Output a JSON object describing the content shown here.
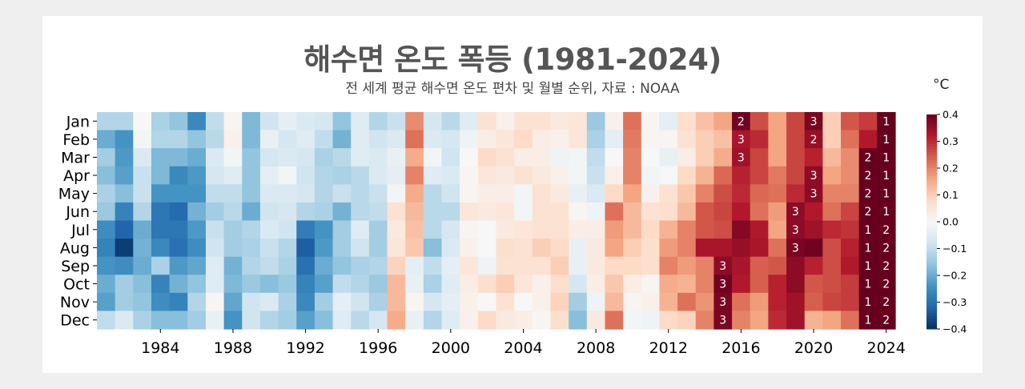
{
  "chart_data": {
    "type": "heatmap",
    "title": "해수면 온도 폭등 (1981-2024)",
    "subtitle": "전 세계 평균 해수면 온도 편차 및 월별 순위, 자료 : NOAA",
    "colorbar_label": "°C",
    "colormap": "RdBu_r",
    "color_range": [
      -0.4,
      0.4
    ],
    "colorbar_ticks": [
      "0.4",
      "0.3",
      "0.2",
      "0.1",
      "0.0",
      "−0.1",
      "−0.2",
      "−0.3",
      "−0.4"
    ],
    "months": [
      "Jan",
      "Feb",
      "Mar",
      "Apr",
      "May",
      "Jun",
      "Jul",
      "Aug",
      "Sep",
      "Oct",
      "Nov",
      "Dec"
    ],
    "x_tick_labels": [
      "1984",
      "1988",
      "1992",
      "1996",
      "2000",
      "2004",
      "2008",
      "2012",
      "2016",
      "2020",
      "2024"
    ],
    "years": [
      1981,
      1982,
      1983,
      1984,
      1985,
      1986,
      1987,
      1988,
      1989,
      1990,
      1991,
      1992,
      1993,
      1994,
      1995,
      1996,
      1997,
      1998,
      1999,
      2000,
      2001,
      2002,
      2003,
      2004,
      2005,
      2006,
      2007,
      2008,
      2009,
      2010,
      2011,
      2012,
      2013,
      2014,
      2015,
      2016,
      2017,
      2018,
      2019,
      2020,
      2021,
      2022,
      2023,
      2024
    ],
    "values": [
      [
        -0.12,
        -0.2,
        -0.14,
        -0.17,
        -0.13,
        -0.15,
        -0.25,
        -0.27,
        -0.24,
        -0.2,
        -0.22,
        -0.1
      ],
      [
        -0.12,
        -0.24,
        -0.23,
        -0.22,
        -0.17,
        -0.27,
        -0.32,
        -0.38,
        -0.25,
        -0.14,
        -0.14,
        -0.06
      ],
      [
        0.0,
        -0.01,
        -0.06,
        -0.09,
        -0.09,
        -0.12,
        -0.2,
        -0.19,
        -0.2,
        -0.17,
        -0.16,
        -0.13
      ],
      [
        -0.13,
        -0.12,
        -0.18,
        -0.18,
        -0.24,
        -0.29,
        -0.29,
        -0.26,
        -0.13,
        -0.27,
        -0.25,
        -0.17
      ],
      [
        -0.16,
        -0.12,
        -0.18,
        -0.26,
        -0.24,
        -0.31,
        -0.29,
        -0.3,
        -0.23,
        -0.19,
        -0.27,
        -0.17
      ],
      [
        -0.26,
        -0.16,
        -0.2,
        -0.23,
        -0.24,
        -0.19,
        -0.23,
        -0.25,
        -0.21,
        -0.16,
        -0.12,
        -0.14
      ],
      [
        -0.1,
        -0.11,
        -0.06,
        -0.07,
        -0.1,
        -0.14,
        -0.09,
        -0.08,
        -0.05,
        -0.05,
        0.01,
        -0.03
      ],
      [
        0.01,
        0.02,
        -0.01,
        -0.05,
        -0.1,
        -0.11,
        -0.14,
        -0.14,
        -0.19,
        -0.18,
        -0.21,
        -0.24
      ],
      [
        -0.18,
        -0.18,
        -0.16,
        -0.16,
        -0.16,
        -0.2,
        -0.12,
        -0.13,
        -0.12,
        -0.15,
        -0.08,
        -0.08
      ],
      [
        -0.08,
        -0.03,
        -0.07,
        -0.04,
        -0.06,
        -0.08,
        -0.06,
        -0.09,
        -0.1,
        -0.17,
        -0.06,
        -0.12
      ],
      [
        -0.04,
        -0.07,
        -0.06,
        -0.01,
        -0.06,
        -0.07,
        -0.08,
        -0.12,
        -0.13,
        -0.15,
        -0.13,
        -0.14
      ],
      [
        -0.06,
        -0.05,
        -0.07,
        -0.08,
        -0.07,
        -0.12,
        -0.28,
        -0.33,
        -0.3,
        -0.27,
        -0.26,
        -0.22
      ],
      [
        -0.07,
        -0.1,
        -0.13,
        -0.12,
        -0.12,
        -0.13,
        -0.24,
        -0.23,
        -0.2,
        -0.22,
        -0.14,
        -0.17
      ],
      [
        -0.16,
        -0.19,
        -0.11,
        -0.13,
        -0.09,
        -0.19,
        -0.14,
        -0.14,
        -0.16,
        -0.1,
        -0.04,
        -0.05
      ],
      [
        -0.05,
        -0.05,
        -0.05,
        -0.11,
        -0.11,
        -0.11,
        -0.05,
        -0.08,
        -0.13,
        -0.12,
        -0.08,
        -0.11
      ],
      [
        -0.12,
        -0.08,
        -0.06,
        -0.06,
        -0.09,
        -0.1,
        -0.14,
        -0.14,
        -0.12,
        -0.15,
        -0.13,
        -0.07
      ],
      [
        -0.09,
        -0.06,
        -0.03,
        -0.04,
        -0.01,
        0.06,
        0.04,
        0.05,
        0.09,
        0.13,
        0.13,
        0.15
      ],
      [
        0.19,
        0.22,
        0.15,
        0.2,
        0.15,
        0.13,
        0.12,
        0.11,
        -0.04,
        -0.03,
        0.01,
        -0.03
      ],
      [
        -0.07,
        -0.06,
        -0.01,
        -0.05,
        -0.11,
        -0.11,
        -0.11,
        -0.17,
        -0.1,
        -0.13,
        -0.07,
        -0.12
      ],
      [
        -0.11,
        -0.07,
        -0.08,
        -0.06,
        -0.08,
        -0.11,
        -0.07,
        -0.06,
        -0.04,
        -0.05,
        -0.04,
        -0.05
      ],
      [
        -0.05,
        -0.02,
        0.0,
        0.01,
        0.01,
        0.05,
        0.01,
        0.02,
        0.05,
        0.03,
        0.02,
        0.02
      ],
      [
        0.06,
        0.03,
        0.08,
        0.05,
        0.03,
        0.04,
        0.0,
        0.0,
        -0.02,
        0.07,
        0.0,
        0.08
      ],
      [
        0.02,
        0.05,
        0.06,
        0.04,
        0.03,
        0.05,
        0.04,
        0.07,
        0.06,
        0.1,
        0.06,
        0.04
      ],
      [
        0.06,
        0.08,
        0.03,
        0.06,
        -0.01,
        -0.01,
        0.05,
        0.06,
        0.06,
        0.05,
        0.0,
        0.03
      ],
      [
        0.06,
        0.03,
        0.03,
        0.04,
        0.06,
        0.06,
        0.06,
        0.1,
        0.06,
        0.02,
        0.02,
        0.01
      ],
      [
        0.04,
        0.02,
        -0.02,
        0.02,
        0.04,
        0.06,
        0.06,
        0.08,
        0.1,
        0.07,
        0.09,
        0.07
      ],
      [
        0.05,
        0.05,
        -0.01,
        -0.01,
        -0.03,
        0.01,
        0.03,
        -0.03,
        -0.03,
        -0.07,
        -0.14,
        -0.17
      ],
      [
        -0.15,
        -0.13,
        -0.1,
        -0.09,
        -0.06,
        -0.02,
        0.03,
        0.04,
        0.04,
        0.03,
        -0.02,
        0.04
      ],
      [
        0.02,
        -0.04,
        0.0,
        0.02,
        0.08,
        0.22,
        0.17,
        0.16,
        0.08,
        0.11,
        0.13,
        0.22
      ],
      [
        0.22,
        0.21,
        0.2,
        0.2,
        0.16,
        0.13,
        0.13,
        0.1,
        0.08,
        0.03,
        0.01,
        -0.01
      ],
      [
        0.01,
        0.01,
        0.0,
        -0.01,
        0.02,
        0.06,
        0.08,
        0.07,
        0.07,
        0.01,
        0.02,
        -0.02
      ],
      [
        -0.04,
        0.01,
        -0.03,
        0.0,
        0.06,
        0.07,
        0.14,
        0.17,
        0.2,
        0.15,
        0.14,
        0.08
      ],
      [
        0.07,
        0.06,
        0.03,
        0.08,
        0.11,
        0.13,
        0.2,
        0.2,
        0.17,
        0.14,
        0.22,
        0.09
      ],
      [
        0.12,
        0.1,
        0.1,
        0.14,
        0.2,
        0.25,
        0.25,
        0.33,
        0.2,
        0.2,
        0.18,
        0.2
      ],
      [
        0.16,
        0.12,
        0.15,
        0.23,
        0.26,
        0.27,
        0.26,
        0.33,
        0.36,
        0.39,
        0.38,
        0.38
      ],
      [
        0.39,
        0.33,
        0.34,
        0.31,
        0.3,
        0.32,
        0.37,
        0.35,
        0.33,
        0.32,
        0.22,
        0.2
      ],
      [
        0.26,
        0.3,
        0.27,
        0.27,
        0.23,
        0.22,
        0.32,
        0.33,
        0.24,
        0.24,
        0.17,
        0.16
      ],
      [
        0.16,
        0.16,
        0.16,
        0.21,
        0.22,
        0.17,
        0.16,
        0.22,
        0.25,
        0.31,
        0.31,
        0.3
      ],
      [
        0.27,
        0.27,
        0.27,
        0.27,
        0.3,
        0.36,
        0.36,
        0.38,
        0.36,
        0.36,
        0.34,
        0.34
      ],
      [
        0.38,
        0.35,
        0.31,
        0.36,
        0.36,
        0.32,
        0.34,
        0.39,
        0.31,
        0.25,
        0.24,
        0.14
      ],
      [
        0.1,
        0.1,
        0.13,
        0.16,
        0.2,
        0.22,
        0.3,
        0.26,
        0.26,
        0.26,
        0.27,
        0.16
      ],
      [
        0.25,
        0.22,
        0.19,
        0.19,
        0.2,
        0.27,
        0.29,
        0.31,
        0.32,
        0.28,
        0.28,
        0.22
      ],
      [
        0.28,
        0.32,
        0.42,
        0.42,
        0.42,
        0.42,
        0.5,
        0.5,
        0.5,
        0.5,
        0.5,
        0.5
      ],
      [
        0.5,
        0.5,
        0.5,
        0.5,
        0.5,
        0.5,
        0.45,
        0.45,
        0.45,
        0.45,
        0.45,
        0.45
      ]
    ],
    "rank_annotations": [
      {
        "year": 2015,
        "month": "Sep",
        "rank": "3"
      },
      {
        "year": 2015,
        "month": "Oct",
        "rank": "3"
      },
      {
        "year": 2015,
        "month": "Nov",
        "rank": "3"
      },
      {
        "year": 2015,
        "month": "Dec",
        "rank": "3"
      },
      {
        "year": 2016,
        "month": "Jan",
        "rank": "2"
      },
      {
        "year": 2016,
        "month": "Feb",
        "rank": "3"
      },
      {
        "year": 2016,
        "month": "Mar",
        "rank": "3"
      },
      {
        "year": 2019,
        "month": "Jun",
        "rank": "3"
      },
      {
        "year": 2019,
        "month": "Jul",
        "rank": "3"
      },
      {
        "year": 2019,
        "month": "Aug",
        "rank": "3"
      },
      {
        "year": 2020,
        "month": "Jan",
        "rank": "3"
      },
      {
        "year": 2020,
        "month": "Feb",
        "rank": "2"
      },
      {
        "year": 2020,
        "month": "Apr",
        "rank": "3"
      },
      {
        "year": 2020,
        "month": "May",
        "rank": "3"
      },
      {
        "year": 2023,
        "month": "Mar",
        "rank": "2"
      },
      {
        "year": 2023,
        "month": "Apr",
        "rank": "2"
      },
      {
        "year": 2023,
        "month": "May",
        "rank": "2"
      },
      {
        "year": 2023,
        "month": "Jun",
        "rank": "2"
      },
      {
        "year": 2023,
        "month": "Jul",
        "rank": "1"
      },
      {
        "year": 2023,
        "month": "Aug",
        "rank": "1"
      },
      {
        "year": 2023,
        "month": "Sep",
        "rank": "1"
      },
      {
        "year": 2023,
        "month": "Oct",
        "rank": "1"
      },
      {
        "year": 2023,
        "month": "Nov",
        "rank": "1"
      },
      {
        "year": 2023,
        "month": "Dec",
        "rank": "1"
      },
      {
        "year": 2024,
        "month": "Jan",
        "rank": "1"
      },
      {
        "year": 2024,
        "month": "Feb",
        "rank": "1"
      },
      {
        "year": 2024,
        "month": "Mar",
        "rank": "1"
      },
      {
        "year": 2024,
        "month": "Apr",
        "rank": "1"
      },
      {
        "year": 2024,
        "month": "May",
        "rank": "1"
      },
      {
        "year": 2024,
        "month": "Jun",
        "rank": "1"
      },
      {
        "year": 2024,
        "month": "Jul",
        "rank": "2"
      },
      {
        "year": 2024,
        "month": "Aug",
        "rank": "2"
      },
      {
        "year": 2024,
        "month": "Sep",
        "rank": "2"
      },
      {
        "year": 2024,
        "month": "Oct",
        "rank": "2"
      },
      {
        "year": 2024,
        "month": "Nov",
        "rank": "2"
      },
      {
        "year": 2024,
        "month": "Dec",
        "rank": "2"
      }
    ]
  }
}
